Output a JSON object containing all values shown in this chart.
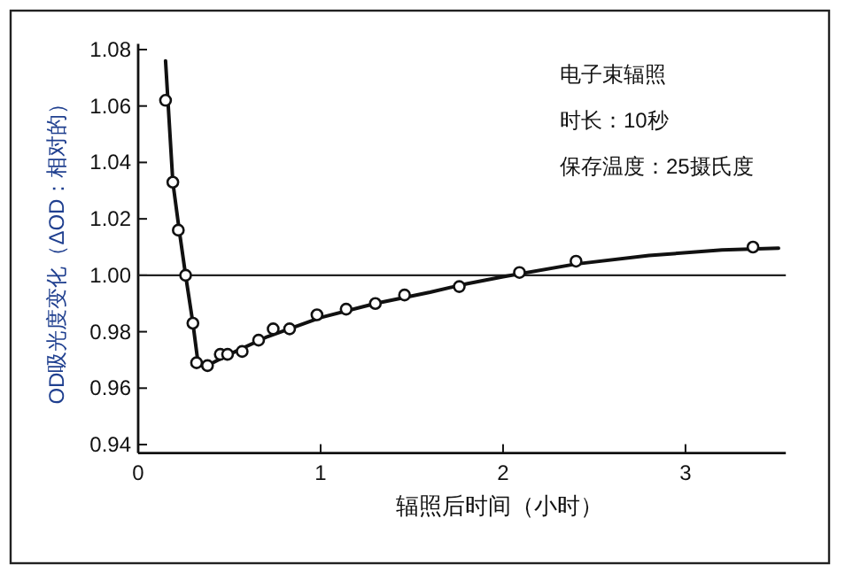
{
  "chart_data": {
    "type": "line",
    "xlabel": "辐照后时间（小时）",
    "ylabel": "OD吸光度变化（ΔOD：相对的）",
    "annotations": [
      "电子束辐照",
      "时长：10秒",
      "保存温度：25摄氏度"
    ],
    "xlim": [
      0,
      3.55
    ],
    "ylim": [
      0.937,
      1.082
    ],
    "xticks": [
      0,
      1,
      2,
      3
    ],
    "yticks": [
      {
        "value": 0.94,
        "label": "0.94"
      },
      {
        "value": 0.96,
        "label": "0.96"
      },
      {
        "value": 0.98,
        "label": "0.98"
      },
      {
        "value": 1.0,
        "label": "1.00"
      },
      {
        "value": 1.02,
        "label": "1.02"
      },
      {
        "value": 1.04,
        "label": "1.04"
      },
      {
        "value": 1.06,
        "label": "1.06"
      },
      {
        "value": 1.08,
        "label": "1.08"
      }
    ],
    "ref_lines": [
      {
        "axis": "y",
        "value": 1.0,
        "color": "#222222"
      }
    ],
    "series": [
      {
        "type": "line",
        "color": "#111111",
        "marker": "none",
        "x": [
          0.15,
          0.19,
          0.225,
          0.26,
          0.3,
          0.33,
          0.38,
          0.5,
          0.7,
          1.0,
          1.3,
          1.6,
          1.8,
          2.0,
          2.4,
          2.8,
          3.2,
          3.51
        ],
        "values": [
          1.076,
          1.033,
          1.016,
          1.0,
          0.983,
          0.968,
          0.968,
          0.972,
          0.978,
          0.985,
          0.99,
          0.994,
          0.997,
          0.9995,
          1.004,
          1.007,
          1.009,
          1.0096
        ]
      },
      {
        "type": "scatter",
        "color": "#111111",
        "marker": "circle",
        "x": [
          0.15,
          0.19,
          0.22,
          0.26,
          0.3,
          0.32,
          0.38,
          0.45,
          0.49,
          0.57,
          0.66,
          0.74,
          0.83,
          0.98,
          1.14,
          1.3,
          1.46,
          1.76,
          2.09,
          2.4,
          3.37
        ],
        "values": [
          1.062,
          1.033,
          1.016,
          1.0,
          0.983,
          0.969,
          0.968,
          0.972,
          0.972,
          0.973,
          0.977,
          0.981,
          0.981,
          0.986,
          0.988,
          0.99,
          0.993,
          0.996,
          1.001,
          1.005,
          1.01
        ]
      }
    ]
  }
}
